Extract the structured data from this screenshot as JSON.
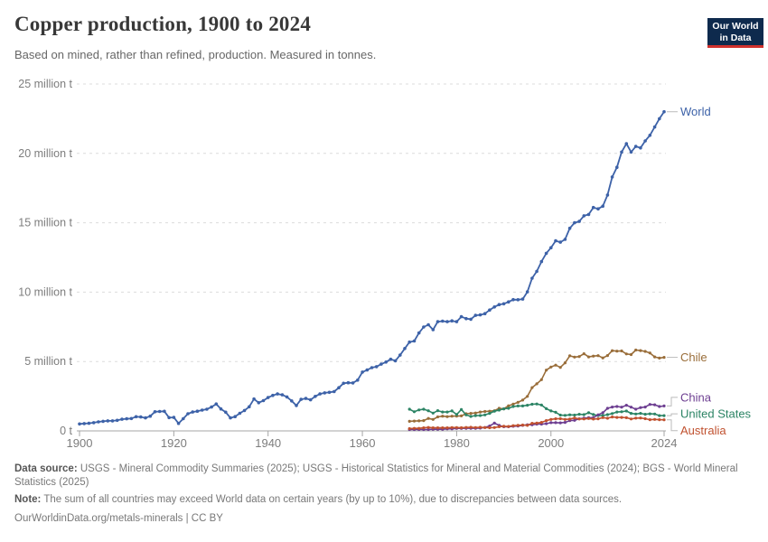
{
  "header": {
    "title": "Copper production, 1900 to 2024",
    "subtitle": "Based on mined, rather than refined, production. Measured in tonnes."
  },
  "logo": {
    "line1": "Our World",
    "line2": "in Data"
  },
  "footer": {
    "datasource_label": "Data source:",
    "datasource_text": " USGS - Mineral Commodity Summaries (2025); USGS - Historical Statistics for Mineral and Material Commodities (2024); BGS - World Mineral Statistics (2025)",
    "note_label": "Note:",
    "note_text": " The sum of all countries may exceed World data on certain years (by up to 10%), due to discrepancies between data sources.",
    "url": "OurWorldinData.org/metals-minerals",
    "divider": " | ",
    "license": "CC BY"
  },
  "colors": {
    "grid": "#dcdcdc",
    "axis": "#a5a5a5",
    "tick_text": "#7d7d7d",
    "connector": "#bbbbbb",
    "logo_bg": "#0e2a4d",
    "logo_strip": "#d0312d"
  },
  "chart_data": {
    "type": "line",
    "title": "Copper production, 1900 to 2024",
    "unit": "tonnes",
    "xlim": [
      1900,
      2024
    ],
    "ylim": [
      0,
      25000000
    ],
    "grid": true,
    "legend_position": "right-line-labels",
    "x_ticks": [
      1900,
      1920,
      1940,
      1960,
      1980,
      2000,
      2024
    ],
    "y_ticks": [
      {
        "value": 0,
        "label": "0 t"
      },
      {
        "value": 5,
        "label": "5 million t"
      },
      {
        "value": 10,
        "label": "10 million t"
      },
      {
        "value": 15,
        "label": "15 million t"
      },
      {
        "value": 20,
        "label": "20 million t"
      },
      {
        "value": 25,
        "label": "25 million t"
      }
    ],
    "y_unit_millions": "million t",
    "series": [
      {
        "name": "World",
        "color": "#3d62a8",
        "start_year": 1900,
        "values_million_t": [
          0.5,
          0.53,
          0.55,
          0.59,
          0.65,
          0.69,
          0.72,
          0.72,
          0.76,
          0.84,
          0.87,
          0.89,
          1.02,
          1.0,
          0.94,
          1.06,
          1.38,
          1.4,
          1.41,
          0.96,
          0.97,
          0.54,
          0.88,
          1.24,
          1.36,
          1.42,
          1.5,
          1.56,
          1.72,
          1.94,
          1.58,
          1.35,
          0.94,
          1.03,
          1.27,
          1.47,
          1.74,
          2.3,
          2.03,
          2.18,
          2.4,
          2.56,
          2.66,
          2.6,
          2.45,
          2.16,
          1.83,
          2.27,
          2.34,
          2.24,
          2.49,
          2.66,
          2.74,
          2.78,
          2.83,
          3.11,
          3.43,
          3.47,
          3.46,
          3.66,
          4.24,
          4.39,
          4.56,
          4.63,
          4.81,
          4.96,
          5.16,
          5.05,
          5.46,
          5.94,
          6.4,
          6.48,
          7.06,
          7.49,
          7.65,
          7.29,
          7.87,
          7.91,
          7.87,
          7.93,
          7.87,
          8.23,
          8.09,
          8.05,
          8.33,
          8.36,
          8.45,
          8.71,
          8.93,
          9.1,
          9.16,
          9.3,
          9.46,
          9.45,
          9.5,
          10.02,
          11.0,
          11.5,
          12.2,
          12.8,
          13.2,
          13.7,
          13.6,
          13.8,
          14.6,
          15.0,
          15.1,
          15.5,
          15.6,
          16.1,
          16.0,
          16.2,
          17.0,
          18.3,
          19.0,
          20.1,
          20.7,
          20.1,
          20.5,
          20.4,
          20.9,
          21.3,
          21.9,
          22.5,
          23.0
        ]
      },
      {
        "name": "Chile",
        "color": "#996d39",
        "start_year": 1970,
        "values_million_t": [
          0.69,
          0.71,
          0.72,
          0.74,
          0.9,
          0.83,
          1.01,
          1.06,
          1.03,
          1.06,
          1.07,
          1.08,
          1.24,
          1.26,
          1.29,
          1.36,
          1.4,
          1.42,
          1.45,
          1.63,
          1.59,
          1.81,
          1.93,
          2.06,
          2.22,
          2.49,
          3.12,
          3.39,
          3.69,
          4.38,
          4.6,
          4.74,
          4.58,
          4.9,
          5.41,
          5.32,
          5.36,
          5.56,
          5.33,
          5.39,
          5.42,
          5.26,
          5.43,
          5.78,
          5.75,
          5.76,
          5.55,
          5.5,
          5.83,
          5.79,
          5.73,
          5.62,
          5.33,
          5.25,
          5.3
        ]
      },
      {
        "name": "United States",
        "color": "#2c8465",
        "start_year": 1970,
        "values_million_t": [
          1.56,
          1.38,
          1.51,
          1.56,
          1.45,
          1.28,
          1.46,
          1.36,
          1.36,
          1.44,
          1.18,
          1.54,
          1.15,
          1.04,
          1.1,
          1.11,
          1.15,
          1.26,
          1.42,
          1.5,
          1.59,
          1.63,
          1.76,
          1.8,
          1.8,
          1.85,
          1.92,
          1.94,
          1.86,
          1.6,
          1.44,
          1.34,
          1.14,
          1.12,
          1.16,
          1.14,
          1.2,
          1.17,
          1.31,
          1.18,
          1.11,
          1.11,
          1.17,
          1.25,
          1.36,
          1.38,
          1.43,
          1.26,
          1.22,
          1.26,
          1.2,
          1.23,
          1.22,
          1.1,
          1.1
        ]
      },
      {
        "name": "China",
        "color": "#6d3e91",
        "start_year": 1970,
        "values_million_t": [
          0.1,
          0.1,
          0.1,
          0.1,
          0.1,
          0.12,
          0.12,
          0.12,
          0.15,
          0.15,
          0.18,
          0.18,
          0.19,
          0.19,
          0.19,
          0.2,
          0.25,
          0.35,
          0.56,
          0.4,
          0.3,
          0.3,
          0.33,
          0.35,
          0.4,
          0.44,
          0.44,
          0.49,
          0.49,
          0.52,
          0.59,
          0.59,
          0.58,
          0.61,
          0.74,
          0.76,
          0.87,
          0.92,
          0.95,
          0.96,
          1.16,
          1.31,
          1.63,
          1.72,
          1.76,
          1.71,
          1.85,
          1.71,
          1.56,
          1.68,
          1.72,
          1.91,
          1.88,
          1.76,
          1.8
        ]
      },
      {
        "name": "Australia",
        "color": "#c0512f",
        "start_year": 1970,
        "values_million_t": [
          0.16,
          0.18,
          0.18,
          0.22,
          0.25,
          0.22,
          0.22,
          0.22,
          0.22,
          0.24,
          0.24,
          0.23,
          0.25,
          0.26,
          0.24,
          0.26,
          0.24,
          0.23,
          0.24,
          0.3,
          0.33,
          0.32,
          0.38,
          0.4,
          0.42,
          0.4,
          0.55,
          0.56,
          0.61,
          0.74,
          0.83,
          0.87,
          0.88,
          0.83,
          0.85,
          0.93,
          0.86,
          0.86,
          0.89,
          0.85,
          0.87,
          0.96,
          0.91,
          1.0,
          0.97,
          0.97,
          0.95,
          0.86,
          0.92,
          0.93,
          0.88,
          0.81,
          0.83,
          0.81,
          0.8
        ]
      }
    ]
  }
}
